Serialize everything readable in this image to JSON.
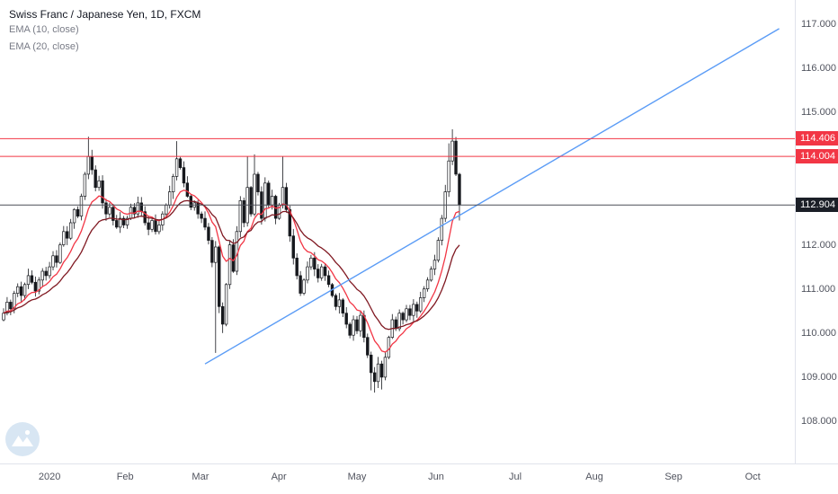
{
  "header": {
    "symbol_title": "Swiss Franc / Japanese Yen, 1D, FXCM",
    "indicators": [
      {
        "label": "EMA (10, close)"
      },
      {
        "label": "EMA (20, close)"
      }
    ]
  },
  "colors": {
    "axis_text": "#50535e",
    "axis_border": "#e0e3eb",
    "badge_red": "#f23645",
    "badge_black": "#1b1f27",
    "candle_up_fill": "#ffffff",
    "candle_down_fill": "#16181d",
    "candle_border": "#16181d",
    "trendline_blue": "#5b9cf6",
    "last_price_line": "#4a4d57"
  },
  "logo": {
    "name": "tradingview-watermark",
    "circle": "#d6e5f3",
    "glyph": "#ffffff"
  },
  "chart_data": {
    "type": "candlestick",
    "title": "Swiss Franc / Japanese Yen, 1D, FXCM",
    "interval": "1D",
    "legend_indicators": [
      "EMA (10, close)",
      "EMA (20, close)"
    ],
    "ylim": [
      107.0,
      117.55
    ],
    "grid": false,
    "yticks": [
      {
        "label": "117.000",
        "price": 117.0
      },
      {
        "label": "116.000",
        "price": 116.0
      },
      {
        "label": "115.000",
        "price": 115.0
      },
      {
        "label": "112.000",
        "price": 112.0
      },
      {
        "label": "111.000",
        "price": 111.0
      },
      {
        "label": "110.000",
        "price": 110.0
      },
      {
        "label": "109.000",
        "price": 109.0
      },
      {
        "label": "108.000",
        "price": 108.0
      }
    ],
    "months": [
      {
        "label": "2020",
        "t": 13
      },
      {
        "label": "Feb",
        "t": 34.4
      },
      {
        "label": "Mar",
        "t": 55.7
      },
      {
        "label": "Apr",
        "t": 77.9
      },
      {
        "label": "May",
        "t": 100
      },
      {
        "label": "Jun",
        "t": 122.4
      },
      {
        "label": "Jul",
        "t": 144.8
      },
      {
        "label": "Aug",
        "t": 167.2
      },
      {
        "label": "Sep",
        "t": 189.6
      },
      {
        "label": "Oct",
        "t": 212
      }
    ],
    "closes": [
      110.45,
      110.7,
      110.55,
      110.9,
      111.05,
      110.85,
      111.1,
      111.3,
      111.15,
      110.95,
      111.2,
      111.4,
      111.3,
      111.5,
      111.75,
      111.6,
      112.0,
      112.3,
      112.15,
      112.5,
      112.8,
      112.65,
      113.1,
      113.6,
      114.0,
      113.7,
      113.3,
      113.45,
      112.95,
      112.7,
      112.85,
      112.55,
      112.4,
      112.6,
      112.45,
      112.6,
      112.85,
      112.7,
      112.95,
      112.75,
      112.5,
      112.35,
      112.55,
      112.3,
      112.45,
      112.7,
      112.9,
      113.2,
      113.55,
      113.95,
      113.75,
      113.4,
      113.1,
      112.85,
      112.95,
      112.7,
      112.6,
      112.4,
      112.1,
      111.6,
      111.95,
      110.6,
      110.2,
      111.1,
      112.0,
      111.4,
      112.3,
      113.0,
      112.5,
      113.3,
      112.7,
      113.6,
      113.2,
      112.6,
      113.4,
      112.9,
      113.1,
      112.6,
      112.9,
      113.3,
      112.8,
      112.2,
      111.7,
      111.3,
      110.9,
      111.2,
      111.5,
      111.7,
      111.45,
      111.25,
      111.5,
      111.3,
      111.1,
      110.85,
      110.6,
      110.75,
      110.45,
      110.2,
      109.95,
      110.3,
      110.05,
      110.4,
      109.9,
      109.5,
      109.1,
      108.9,
      109.3,
      109.0,
      109.45,
      109.9,
      110.3,
      110.1,
      110.45,
      110.3,
      110.55,
      110.4,
      110.65,
      110.5,
      110.8,
      111.0,
      111.2,
      111.45,
      111.65,
      112.1,
      112.6,
      113.2,
      113.9,
      114.35,
      113.6,
      112.904
    ],
    "wick_highs": {
      "24": 114.45,
      "49": 114.35,
      "69": 114.0,
      "71": 114.05,
      "79": 114.0,
      "126": 114.3,
      "127": 114.62
    },
    "wick_lows": {
      "60": 109.55,
      "62": 110.0,
      "98": 109.88,
      "104": 108.7,
      "105": 108.65,
      "107": 108.72,
      "129": 112.55
    },
    "emas": [
      {
        "period": 10,
        "color": "#f23645"
      },
      {
        "period": 20,
        "color": "#801922"
      }
    ],
    "trendline": {
      "t1": 57,
      "p1": 109.3,
      "t2": 219.5,
      "p2": 116.9,
      "color": "#5b9cf6"
    },
    "hlines": [
      {
        "price": 114.406,
        "label": "114.406",
        "color": "#f23645"
      },
      {
        "price": 114.004,
        "label": "114.004",
        "color": "#f23645"
      }
    ],
    "last_price": {
      "price": 112.904,
      "label": "112.904",
      "bg": "#1b1f27"
    }
  }
}
